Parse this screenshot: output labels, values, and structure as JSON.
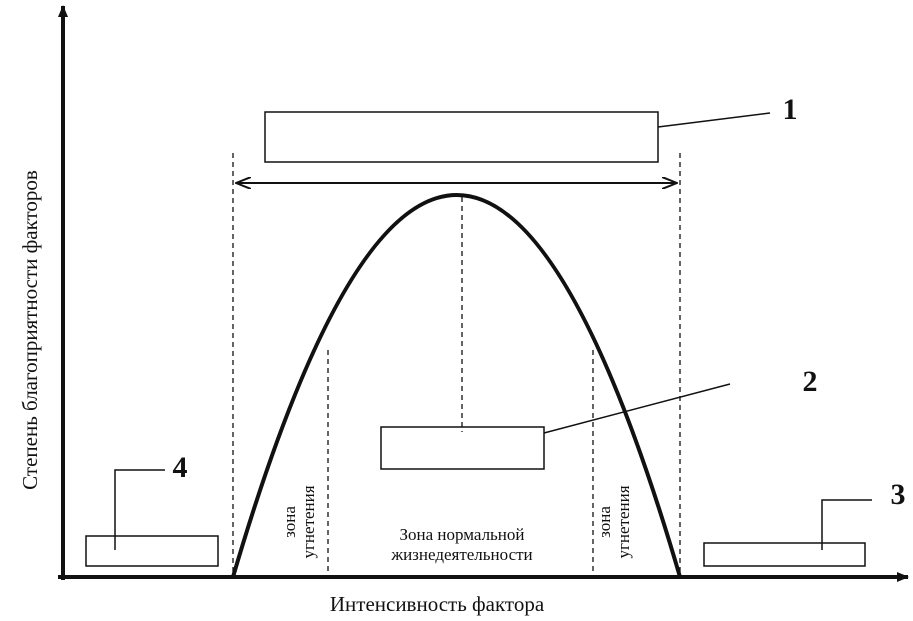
{
  "axes": {
    "x_label": "Интенсивность фактора",
    "y_label": "Степень благоприятности факторов"
  },
  "callouts": [
    "1",
    "2",
    "3",
    "4"
  ],
  "zones": {
    "left": [
      "зона",
      "угнетения"
    ],
    "center": [
      "Зона нормальной",
      "жизнедеятельности"
    ],
    "right": [
      "зона",
      "угнетения"
    ]
  }
}
